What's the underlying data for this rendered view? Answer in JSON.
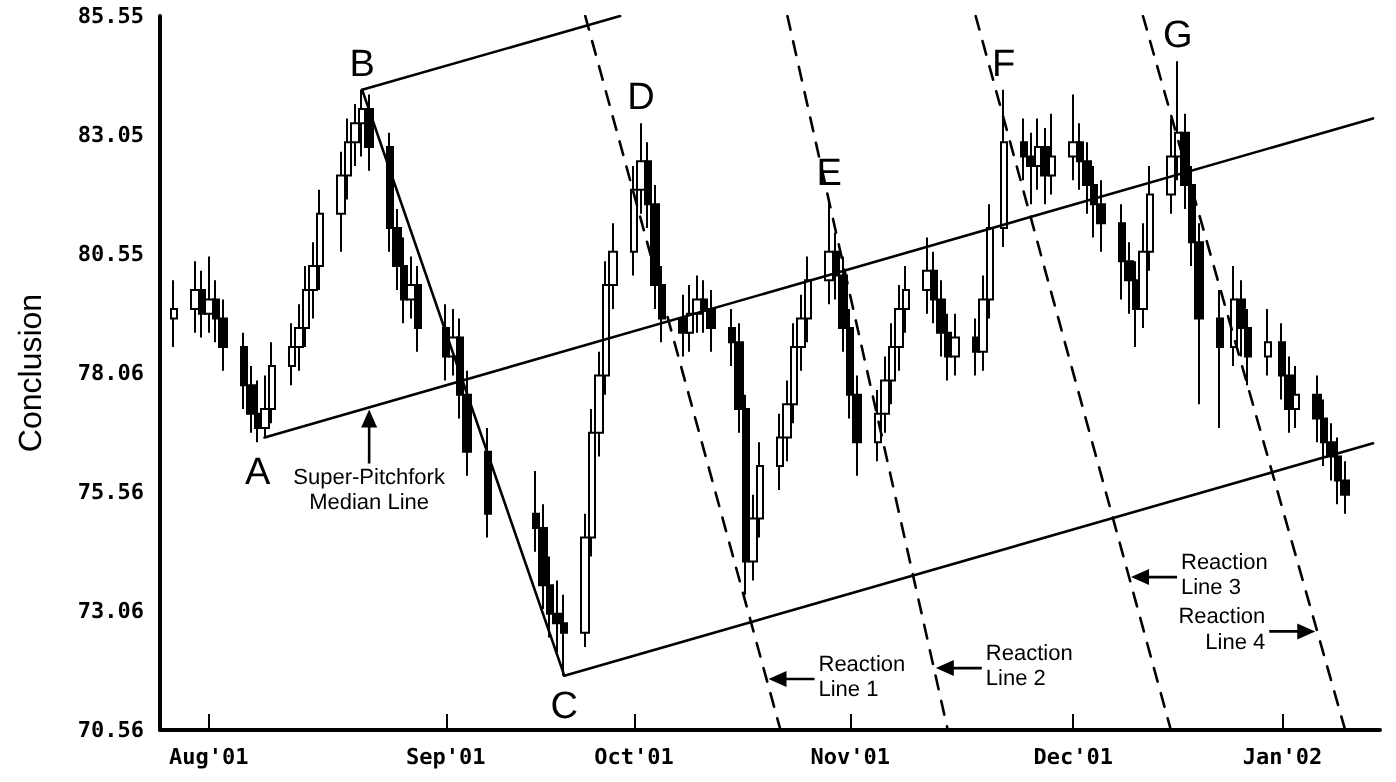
{
  "chart_data": {
    "type": "candlestick",
    "ylabel": "Conclusion",
    "color": "#000000",
    "x": [
      "2001-07-27",
      "2001-07-30",
      "2001-07-31",
      "2001-08-01",
      "2001-08-02",
      "2001-08-03",
      "2001-08-06",
      "2001-08-07",
      "2001-08-08",
      "2001-08-09",
      "2001-08-10",
      "2001-08-13",
      "2001-08-14",
      "2001-08-15",
      "2001-08-16",
      "2001-08-17",
      "2001-08-20",
      "2001-08-21",
      "2001-08-22",
      "2001-08-23",
      "2001-08-24",
      "2001-08-27",
      "2001-08-28",
      "2001-08-29",
      "2001-08-30",
      "2001-08-31",
      "2001-09-04",
      "2001-09-05",
      "2001-09-06",
      "2001-09-07",
      "2001-09-10",
      "2001-09-17",
      "2001-09-18",
      "2001-09-19",
      "2001-09-20",
      "2001-09-21",
      "2001-09-24",
      "2001-09-25",
      "2001-09-26",
      "2001-09-27",
      "2001-09-28",
      "2001-10-01",
      "2001-10-02",
      "2001-10-03",
      "2001-10-04",
      "2001-10-05",
      "2001-10-08",
      "2001-10-09",
      "2001-10-10",
      "2001-10-11",
      "2001-10-12",
      "2001-10-15",
      "2001-10-16",
      "2001-10-17",
      "2001-10-18",
      "2001-10-19",
      "2001-10-22",
      "2001-10-23",
      "2001-10-24",
      "2001-10-25",
      "2001-10-26",
      "2001-10-29",
      "2001-10-30",
      "2001-10-31",
      "2001-11-01",
      "2001-11-02",
      "2001-11-05",
      "2001-11-06",
      "2001-11-07",
      "2001-11-08",
      "2001-11-09",
      "2001-11-12",
      "2001-11-13",
      "2001-11-14",
      "2001-11-15",
      "2001-11-16",
      "2001-11-19",
      "2001-11-20",
      "2001-11-21",
      "2001-11-23",
      "2001-11-26",
      "2001-11-27",
      "2001-11-28",
      "2001-11-29",
      "2001-11-30",
      "2001-12-03",
      "2001-12-04",
      "2001-12-05",
      "2001-12-06",
      "2001-12-07",
      "2001-12-10",
      "2001-12-11",
      "2001-12-12",
      "2001-12-13",
      "2001-12-14",
      "2001-12-17",
      "2001-12-18",
      "2001-12-19",
      "2001-12-20",
      "2001-12-21",
      "2001-12-24",
      "2001-12-26",
      "2001-12-27",
      "2001-12-28",
      "2001-12-31",
      "2002-01-02",
      "2002-01-03",
      "2002-01-04",
      "2002-01-07",
      "2002-01-08",
      "2002-01-09",
      "2002-01-10",
      "2002-01-11"
    ],
    "ohlc": [
      [
        79.2,
        80.0,
        78.6,
        79.4
      ],
      [
        79.4,
        80.4,
        78.9,
        79.8
      ],
      [
        79.8,
        80.2,
        78.8,
        79.3
      ],
      [
        79.3,
        80.5,
        78.9,
        79.6
      ],
      [
        79.6,
        80.0,
        78.7,
        79.2
      ],
      [
        79.2,
        79.6,
        78.1,
        78.6
      ],
      [
        78.6,
        78.9,
        77.3,
        77.8
      ],
      [
        77.8,
        78.2,
        76.8,
        77.2
      ],
      [
        77.2,
        77.9,
        76.6,
        76.9
      ],
      [
        76.9,
        78.0,
        76.7,
        77.3
      ],
      [
        77.3,
        78.7,
        77.0,
        78.2
      ],
      [
        78.2,
        79.1,
        77.8,
        78.6
      ],
      [
        78.6,
        79.5,
        78.1,
        79.0
      ],
      [
        79.0,
        80.3,
        78.6,
        79.8
      ],
      [
        79.8,
        80.8,
        79.2,
        80.3
      ],
      [
        80.3,
        81.9,
        79.8,
        81.4
      ],
      [
        81.4,
        82.7,
        80.6,
        82.2
      ],
      [
        82.2,
        83.4,
        81.7,
        82.9
      ],
      [
        82.9,
        83.7,
        82.4,
        83.3
      ],
      [
        83.3,
        84.0,
        82.6,
        83.6
      ],
      [
        83.6,
        83.9,
        82.3,
        82.8
      ],
      [
        82.8,
        83.1,
        80.6,
        81.1
      ],
      [
        81.1,
        81.5,
        79.8,
        80.3
      ],
      [
        80.3,
        80.9,
        79.1,
        79.6
      ],
      [
        79.6,
        80.5,
        79.2,
        79.9
      ],
      [
        79.9,
        80.3,
        78.5,
        79.0
      ],
      [
        79.0,
        79.5,
        77.9,
        78.4
      ],
      [
        78.4,
        79.4,
        78.0,
        78.8
      ],
      [
        78.8,
        79.2,
        77.1,
        77.6
      ],
      [
        77.6,
        78.1,
        75.9,
        76.4
      ],
      [
        76.4,
        76.9,
        74.6,
        75.1
      ],
      [
        75.1,
        76.0,
        74.3,
        74.8
      ],
      [
        74.8,
        75.3,
        73.1,
        73.6
      ],
      [
        73.6,
        74.2,
        72.5,
        73.0
      ],
      [
        73.0,
        73.7,
        72.2,
        72.8
      ],
      [
        72.8,
        73.4,
        71.7,
        72.6
      ],
      [
        72.6,
        75.1,
        72.3,
        74.6
      ],
      [
        74.6,
        77.3,
        74.2,
        76.8
      ],
      [
        76.8,
        78.5,
        76.3,
        78.0
      ],
      [
        78.0,
        80.4,
        77.6,
        79.9
      ],
      [
        79.9,
        81.2,
        79.4,
        80.6
      ],
      [
        80.6,
        82.4,
        80.1,
        81.9
      ],
      [
        81.9,
        83.3,
        81.4,
        82.5
      ],
      [
        82.5,
        82.9,
        81.1,
        81.6
      ],
      [
        81.6,
        82.0,
        79.4,
        79.9
      ],
      [
        79.9,
        80.3,
        78.7,
        79.2
      ],
      [
        79.2,
        79.7,
        78.4,
        78.9
      ],
      [
        78.9,
        79.9,
        78.5,
        79.3
      ],
      [
        79.3,
        80.1,
        78.9,
        79.6
      ],
      [
        79.6,
        80.0,
        78.9,
        79.4
      ],
      [
        79.4,
        79.8,
        78.5,
        79.0
      ],
      [
        79.0,
        79.4,
        78.2,
        78.7
      ],
      [
        78.7,
        79.1,
        76.8,
        77.3
      ],
      [
        77.3,
        77.6,
        73.4,
        74.1
      ],
      [
        74.1,
        75.5,
        73.7,
        75.0
      ],
      [
        75.0,
        76.6,
        74.6,
        76.1
      ],
      [
        76.1,
        77.2,
        75.6,
        76.7
      ],
      [
        76.7,
        77.9,
        76.2,
        77.4
      ],
      [
        77.4,
        79.1,
        77.0,
        78.6
      ],
      [
        78.6,
        79.7,
        78.1,
        79.2
      ],
      [
        79.2,
        80.5,
        78.7,
        80.0
      ],
      [
        80.0,
        81.7,
        79.5,
        80.6
      ],
      [
        80.6,
        81.0,
        79.6,
        80.1
      ],
      [
        80.1,
        80.5,
        78.5,
        79.0
      ],
      [
        79.0,
        79.4,
        77.1,
        77.6
      ],
      [
        77.6,
        78.0,
        75.9,
        76.6
      ],
      [
        76.6,
        77.7,
        76.2,
        77.2
      ],
      [
        77.2,
        78.4,
        76.8,
        77.9
      ],
      [
        77.9,
        79.1,
        77.4,
        78.6
      ],
      [
        78.6,
        79.9,
        78.1,
        79.4
      ],
      [
        79.4,
        80.3,
        78.9,
        79.8
      ],
      [
        79.8,
        80.9,
        79.3,
        80.2
      ],
      [
        80.2,
        80.6,
        79.1,
        79.6
      ],
      [
        79.6,
        80.0,
        78.4,
        78.9
      ],
      [
        78.9,
        79.3,
        77.9,
        78.4
      ],
      [
        78.4,
        79.3,
        78.0,
        78.8
      ],
      [
        78.8,
        79.2,
        78.0,
        78.5
      ],
      [
        78.5,
        80.1,
        78.1,
        79.6
      ],
      [
        79.6,
        81.6,
        79.2,
        81.1
      ],
      [
        81.1,
        84.0,
        80.7,
        82.9
      ],
      [
        82.9,
        83.4,
        82.1,
        82.6
      ],
      [
        82.6,
        83.1,
        81.6,
        82.4
      ],
      [
        82.4,
        83.4,
        81.9,
        82.8
      ],
      [
        82.8,
        83.2,
        81.6,
        82.2
      ],
      [
        82.2,
        83.5,
        81.8,
        82.6
      ],
      [
        82.6,
        83.9,
        82.1,
        82.9
      ],
      [
        82.9,
        83.3,
        81.9,
        82.5
      ],
      [
        82.5,
        82.9,
        81.4,
        82.0
      ],
      [
        82.0,
        82.4,
        80.9,
        81.6
      ],
      [
        81.6,
        82.1,
        80.6,
        81.2
      ],
      [
        81.2,
        81.6,
        79.6,
        80.4
      ],
      [
        80.4,
        80.8,
        79.3,
        80.0
      ],
      [
        80.0,
        80.4,
        78.6,
        79.4
      ],
      [
        79.4,
        81.2,
        79.0,
        80.6
      ],
      [
        80.6,
        82.4,
        80.2,
        81.8
      ],
      [
        81.8,
        83.4,
        81.4,
        82.6
      ],
      [
        82.6,
        84.6,
        82.1,
        83.1
      ],
      [
        83.1,
        83.5,
        81.5,
        82.0
      ],
      [
        82.0,
        82.4,
        80.3,
        80.8
      ],
      [
        80.8,
        81.2,
        77.4,
        79.2
      ],
      [
        79.2,
        79.8,
        76.9,
        78.6
      ],
      [
        78.6,
        80.3,
        78.2,
        79.6
      ],
      [
        79.6,
        80.0,
        78.4,
        79.0
      ],
      [
        79.0,
        79.4,
        77.8,
        78.4
      ],
      [
        78.4,
        79.4,
        78.0,
        78.7
      ],
      [
        78.7,
        79.1,
        77.5,
        78.0
      ],
      [
        78.0,
        78.4,
        76.8,
        77.3
      ],
      [
        77.3,
        78.2,
        76.9,
        77.6
      ],
      [
        77.6,
        78.0,
        76.6,
        77.1
      ],
      [
        77.1,
        77.5,
        76.1,
        76.6
      ],
      [
        76.6,
        77.0,
        75.8,
        76.3
      ],
      [
        76.3,
        76.7,
        75.3,
        75.8
      ],
      [
        75.8,
        76.2,
        75.1,
        75.5
      ]
    ],
    "series": [
      {
        "type": "line",
        "color": "#000000",
        "line_style": "solid",
        "x": [
          "2001-08-09",
          "2002-01-15"
        ],
        "values": [
          76.7,
          83.4
        ]
      },
      {
        "type": "line",
        "color": "#000000",
        "line_style": "solid",
        "x": [
          "2001-08-23",
          "2001-09-29"
        ],
        "values": [
          84.0,
          85.55
        ]
      },
      {
        "type": "line",
        "color": "#000000",
        "line_style": "solid",
        "x": [
          "2001-09-21",
          "2002-01-15"
        ],
        "values": [
          71.7,
          76.58
        ]
      },
      {
        "type": "line",
        "color": "#000000",
        "line_style": "solid",
        "x": [
          "2001-08-23",
          "2001-09-21"
        ],
        "values": [
          84.0,
          71.7
        ]
      },
      {
        "type": "line",
        "color": "#000000",
        "line_style": "dashed",
        "x": [
          "2001-09-24",
          "2001-10-22"
        ],
        "values": [
          85.55,
          70.56
        ]
      },
      {
        "type": "line",
        "color": "#000000",
        "line_style": "dashed",
        "x": [
          "2001-10-23",
          "2001-11-15"
        ],
        "values": [
          85.55,
          70.56
        ]
      },
      {
        "type": "line",
        "color": "#000000",
        "line_style": "dashed",
        "x": [
          "2001-11-19",
          "2001-12-17"
        ],
        "values": [
          85.55,
          70.56
        ]
      },
      {
        "type": "line",
        "color": "#000000",
        "line_style": "dashed",
        "x": [
          "2001-12-13",
          "2002-01-11"
        ],
        "values": [
          85.55,
          70.56
        ]
      }
    ],
    "marker": "none",
    "xlim": [
      "2001-07-25",
      "2002-01-16"
    ],
    "xticks": [
      {
        "value": "2001-08-01",
        "label": "Aug'01"
      },
      {
        "value": "2001-09-04",
        "label": "Sep'01"
      },
      {
        "value": "2001-10-01",
        "label": "Oct'01"
      },
      {
        "value": "2001-11-01",
        "label": "Nov'01"
      },
      {
        "value": "2001-12-03",
        "label": "Dec'01"
      },
      {
        "value": "2002-01-02",
        "label": "Jan'02"
      }
    ],
    "ylim": [
      70.56,
      85.55
    ],
    "yticks": [
      70.56,
      73.06,
      75.56,
      78.06,
      80.55,
      83.05,
      85.55
    ],
    "annotations": [
      {
        "text": "A",
        "x": "2001-08-08",
        "y": 76.6
      },
      {
        "text": "B",
        "x": "2001-08-23",
        "y": 84.0
      },
      {
        "text": "C",
        "x": "2001-09-21",
        "y": 71.7
      },
      {
        "text": "D",
        "x": "2001-10-02",
        "y": 83.3
      },
      {
        "text": "E",
        "x": "2001-10-29",
        "y": 81.7
      },
      {
        "text": "F",
        "x": "2001-11-23",
        "y": 84.0
      },
      {
        "text": "G",
        "x": "2001-12-18",
        "y": 84.6
      },
      {
        "text": "Super-Pitchfork\nMedian Line",
        "x": "2001-08-24",
        "y": 77.33
      },
      {
        "text": "Reaction\nLine 1",
        "x": "2001-10-20",
        "y": 71.63
      },
      {
        "text": "Reaction\nLine 2",
        "x": "2001-11-13",
        "y": 71.86
      },
      {
        "text": "Reaction\nLine 3",
        "x": "2001-12-11",
        "y": 73.77
      },
      {
        "text": "Reaction\nLine 4",
        "x": "2002-01-07",
        "y": 72.63
      }
    ]
  }
}
